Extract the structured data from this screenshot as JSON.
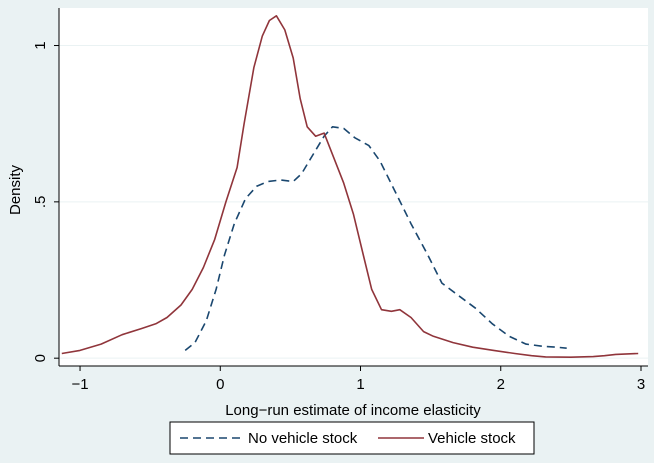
{
  "chart_data": {
    "type": "line",
    "title": "",
    "xlabel": "Long−run estimate of income elasticity",
    "ylabel": "Density",
    "xlim": [
      -1.15,
      3.05
    ],
    "ylim": [
      -0.025,
      1.12
    ],
    "x_ticks": [
      {
        "value": -1,
        "label": "−1"
      },
      {
        "value": 0,
        "label": "0"
      },
      {
        "value": 1,
        "label": "1"
      },
      {
        "value": 2,
        "label": "2"
      },
      {
        "value": 3,
        "label": "3"
      }
    ],
    "y_ticks": [
      {
        "value": 0,
        "label": "0"
      },
      {
        "value": 0.5,
        "label": ".5"
      },
      {
        "value": 1,
        "label": "1"
      }
    ],
    "grid": true,
    "legend_position": "bottom",
    "series": [
      {
        "name": "No vehicle stock",
        "color": "#1a476f",
        "dash": "dashed",
        "points": [
          [
            -0.25,
            0.025
          ],
          [
            -0.18,
            0.05
          ],
          [
            -0.1,
            0.12
          ],
          [
            -0.03,
            0.22
          ],
          [
            0.03,
            0.33
          ],
          [
            0.1,
            0.43
          ],
          [
            0.18,
            0.51
          ],
          [
            0.26,
            0.55
          ],
          [
            0.34,
            0.565
          ],
          [
            0.43,
            0.57
          ],
          [
            0.52,
            0.565
          ],
          [
            0.58,
            0.59
          ],
          [
            0.66,
            0.65
          ],
          [
            0.74,
            0.71
          ],
          [
            0.8,
            0.74
          ],
          [
            0.88,
            0.735
          ],
          [
            0.96,
            0.705
          ],
          [
            1.06,
            0.68
          ],
          [
            1.14,
            0.63
          ],
          [
            1.25,
            0.53
          ],
          [
            1.36,
            0.43
          ],
          [
            1.48,
            0.33
          ],
          [
            1.58,
            0.24
          ],
          [
            1.7,
            0.2
          ],
          [
            1.82,
            0.16
          ],
          [
            1.94,
            0.11
          ],
          [
            2.06,
            0.07
          ],
          [
            2.18,
            0.045
          ],
          [
            2.3,
            0.038
          ],
          [
            2.4,
            0.035
          ],
          [
            2.47,
            0.032
          ]
        ]
      },
      {
        "name": "Vehicle stock",
        "color": "#90353b",
        "dash": "solid",
        "points": [
          [
            -1.13,
            0.015
          ],
          [
            -1.0,
            0.025
          ],
          [
            -0.85,
            0.045
          ],
          [
            -0.7,
            0.075
          ],
          [
            -0.56,
            0.095
          ],
          [
            -0.46,
            0.11
          ],
          [
            -0.38,
            0.13
          ],
          [
            -0.28,
            0.17
          ],
          [
            -0.2,
            0.22
          ],
          [
            -0.12,
            0.29
          ],
          [
            -0.04,
            0.38
          ],
          [
            0.04,
            0.5
          ],
          [
            0.12,
            0.61
          ],
          [
            0.17,
            0.75
          ],
          [
            0.24,
            0.93
          ],
          [
            0.3,
            1.03
          ],
          [
            0.35,
            1.08
          ],
          [
            0.4,
            1.095
          ],
          [
            0.46,
            1.05
          ],
          [
            0.52,
            0.96
          ],
          [
            0.57,
            0.83
          ],
          [
            0.62,
            0.74
          ],
          [
            0.68,
            0.71
          ],
          [
            0.74,
            0.72
          ],
          [
            0.81,
            0.64
          ],
          [
            0.88,
            0.56
          ],
          [
            0.95,
            0.46
          ],
          [
            1.02,
            0.33
          ],
          [
            1.08,
            0.22
          ],
          [
            1.15,
            0.155
          ],
          [
            1.22,
            0.15
          ],
          [
            1.28,
            0.155
          ],
          [
            1.36,
            0.13
          ],
          [
            1.45,
            0.085
          ],
          [
            1.52,
            0.07
          ],
          [
            1.66,
            0.05
          ],
          [
            1.8,
            0.035
          ],
          [
            1.95,
            0.025
          ],
          [
            2.1,
            0.015
          ],
          [
            2.22,
            0.008
          ],
          [
            2.32,
            0.004
          ],
          [
            2.5,
            0.003
          ],
          [
            2.66,
            0.005
          ],
          [
            2.74,
            0.008
          ],
          [
            2.82,
            0.012
          ],
          [
            2.98,
            0.015
          ]
        ]
      }
    ]
  }
}
